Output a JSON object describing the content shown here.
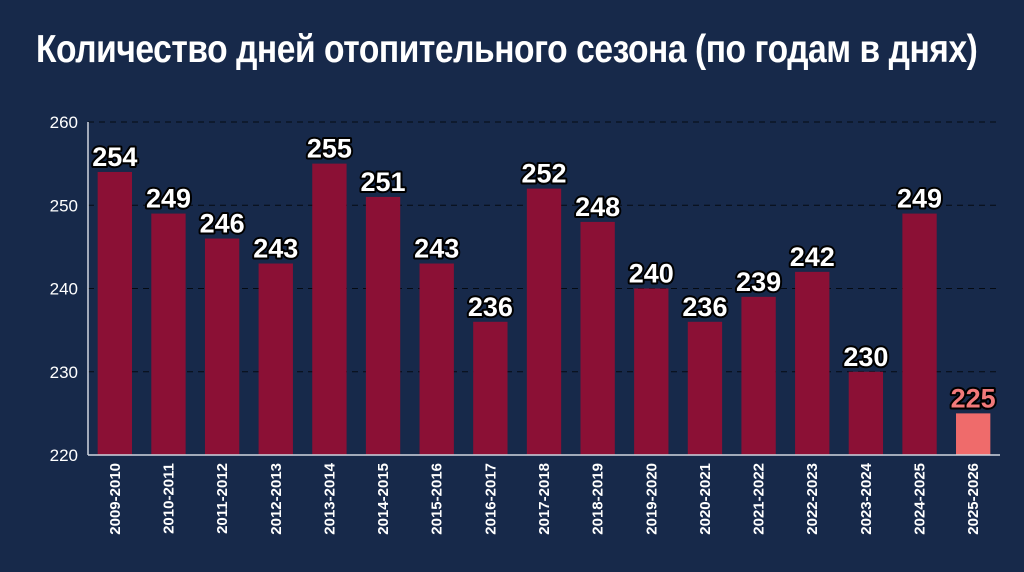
{
  "chart_data": {
    "type": "bar",
    "title": "Количество дней отопительного сезона (по годам в днях)",
    "xlabel": "",
    "ylabel": "",
    "ylim": [
      220,
      260
    ],
    "yticks": [
      "220",
      "230",
      "240",
      "250",
      "260"
    ],
    "categories": [
      "2009-2010",
      "2010-2011",
      "2011-2012",
      "2012-2013",
      "2013-2014",
      "2014-2015",
      "2015-2016",
      "2016-2017",
      "2017-2018",
      "2018-2019",
      "2019-2020",
      "2020-2021",
      "2021-2022",
      "2022-2023",
      "2023-2024",
      "2024-2025",
      "2025-2026"
    ],
    "values": [
      254,
      249,
      246,
      243,
      255,
      251,
      243,
      236,
      252,
      248,
      240,
      236,
      239,
      242,
      230,
      249,
      225
    ],
    "value_labels": [
      "254",
      "249",
      "246",
      "243",
      "255",
      "251",
      "243",
      "236",
      "252",
      "248",
      "240",
      "236",
      "239",
      "242",
      "230",
      "249",
      "225"
    ],
    "highlight_index": 16,
    "grid": true,
    "legend": "none",
    "colors": {
      "background": "#17294a",
      "bar": "#8b1035",
      "highlight_bar": "#ef6b6b",
      "label_text": "#ffffff",
      "highlight_label_text": "#f27a7a"
    }
  }
}
